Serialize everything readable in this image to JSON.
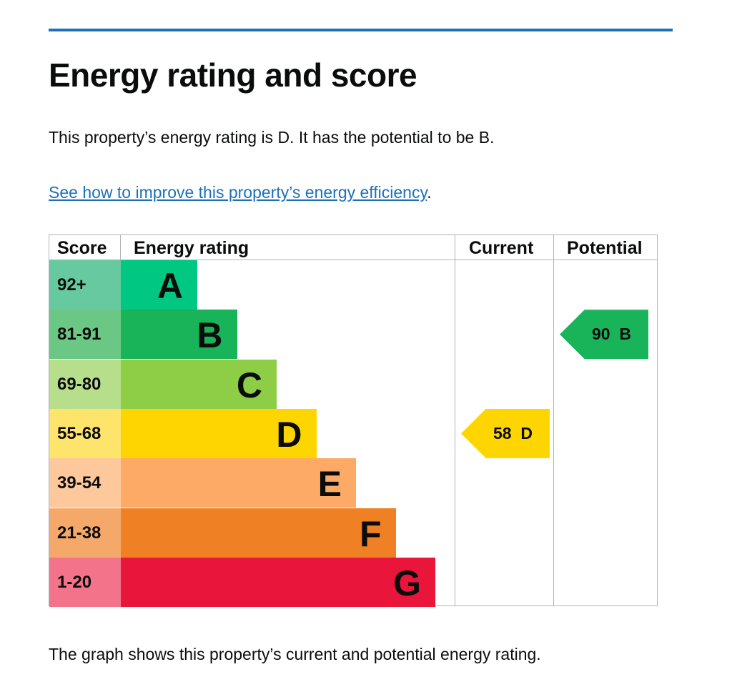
{
  "title": "Energy rating and score",
  "summary": "This property’s energy rating is D. It has the potential to be B.",
  "link_text": "See how to improve this property’s energy efficiency",
  "link_suffix": ".",
  "caption": "The graph shows this property’s current and potential energy rating.",
  "chart_data": {
    "type": "table",
    "headers": {
      "score": "Score",
      "rating": "Energy rating",
      "current": "Current",
      "potential": "Potential"
    },
    "bands": [
      {
        "score": "92+",
        "letter": "A",
        "color": "#00c781",
        "light": "#66c9a0"
      },
      {
        "score": "81-91",
        "letter": "B",
        "color": "#19b459",
        "light": "#6ac784"
      },
      {
        "score": "69-80",
        "letter": "C",
        "color": "#8dce46",
        "light": "#b7de8a"
      },
      {
        "score": "55-68",
        "letter": "D",
        "color": "#ffd500",
        "light": "#ffe46b"
      },
      {
        "score": "39-54",
        "letter": "E",
        "color": "#fcaa65",
        "light": "#fdc99c"
      },
      {
        "score": "21-38",
        "letter": "F",
        "color": "#ef8023",
        "light": "#f4a96a"
      },
      {
        "score": "1-20",
        "letter": "G",
        "color": "#e9153b",
        "light": "#f2738a"
      }
    ],
    "current": {
      "score": 58,
      "letter": "D",
      "label": "58  D"
    },
    "potential": {
      "score": 90,
      "letter": "B",
      "label": "90  B"
    }
  }
}
